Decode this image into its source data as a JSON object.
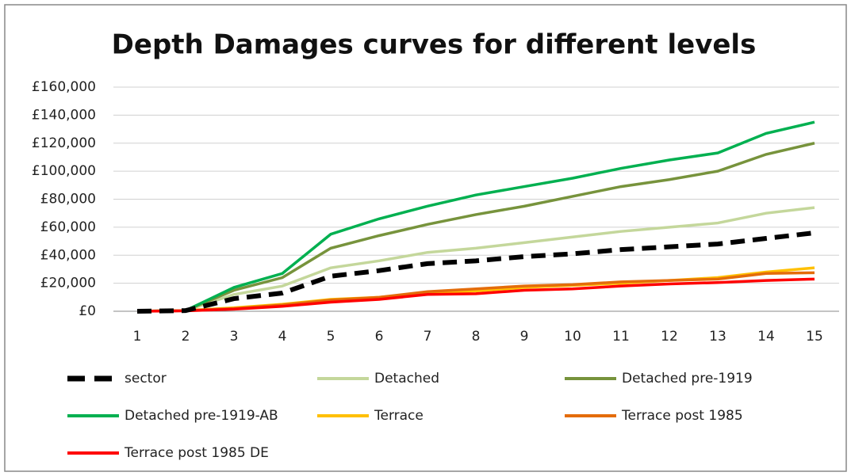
{
  "chart_data": {
    "type": "line",
    "title": "Depth Damages curves  for different levels",
    "x": [
      1,
      2,
      3,
      4,
      5,
      6,
      7,
      8,
      9,
      10,
      11,
      12,
      13,
      14,
      15
    ],
    "xlim": [
      1,
      15
    ],
    "xticks": [
      1,
      2,
      3,
      4,
      5,
      6,
      7,
      8,
      9,
      10,
      11,
      12,
      13,
      14,
      15
    ],
    "ylim": [
      0,
      160000
    ],
    "yticks": [
      {
        "value": 0,
        "label": "£0"
      },
      {
        "value": 20000,
        "label": "£20,000"
      },
      {
        "value": 40000,
        "label": "£40,000"
      },
      {
        "value": 60000,
        "label": "£60,000"
      },
      {
        "value": 80000,
        "label": "£80,000"
      },
      {
        "value": 100000,
        "label": "£100,000"
      },
      {
        "value": 120000,
        "label": "£120,000"
      },
      {
        "value": 140000,
        "label": "£140,000"
      },
      {
        "value": 160000,
        "label": "£160,000"
      }
    ],
    "grid": true,
    "legend": "bottom",
    "series": [
      {
        "name": "sector",
        "color": "#000000",
        "dashed": true,
        "values": [
          0,
          500,
          9000,
          13000,
          25000,
          29000,
          34000,
          36000,
          39000,
          41000,
          44000,
          46000,
          48000,
          52000,
          56000
        ]
      },
      {
        "name": "Detached",
        "color": "#c4d79b",
        "values": [
          0,
          500,
          12000,
          18000,
          31000,
          36000,
          42000,
          45000,
          49000,
          53000,
          57000,
          60000,
          63000,
          70000,
          74000
        ]
      },
      {
        "name": "Detached pre-1919",
        "color": "#77933c",
        "values": [
          0,
          500,
          15000,
          24000,
          45000,
          54000,
          62000,
          69000,
          75000,
          82000,
          89000,
          94000,
          100000,
          112000,
          120000
        ]
      },
      {
        "name": "Detached pre-1919-AB",
        "color": "#00b050",
        "values": [
          0,
          500,
          17000,
          27000,
          55000,
          66000,
          75000,
          83000,
          89000,
          95000,
          102000,
          108000,
          113000,
          127000,
          135000
        ]
      },
      {
        "name": "Terrace",
        "color": "#ffc000",
        "values": [
          0,
          500,
          2500,
          5000,
          8500,
          10000,
          13000,
          14500,
          17000,
          18500,
          20000,
          22000,
          24000,
          28000,
          31000
        ]
      },
      {
        "name": "Terrace post 1985",
        "color": "#e46c0a",
        "values": [
          0,
          500,
          2000,
          4500,
          8000,
          10000,
          14000,
          16000,
          18000,
          19000,
          21000,
          22000,
          23000,
          27000,
          27500
        ]
      },
      {
        "name": "Terrace post 1985 DE",
        "color": "#ff0000",
        "values": [
          0,
          300,
          1500,
          3500,
          6500,
          8500,
          12000,
          12500,
          15000,
          16000,
          18000,
          19500,
          20500,
          22000,
          23000
        ]
      }
    ]
  }
}
